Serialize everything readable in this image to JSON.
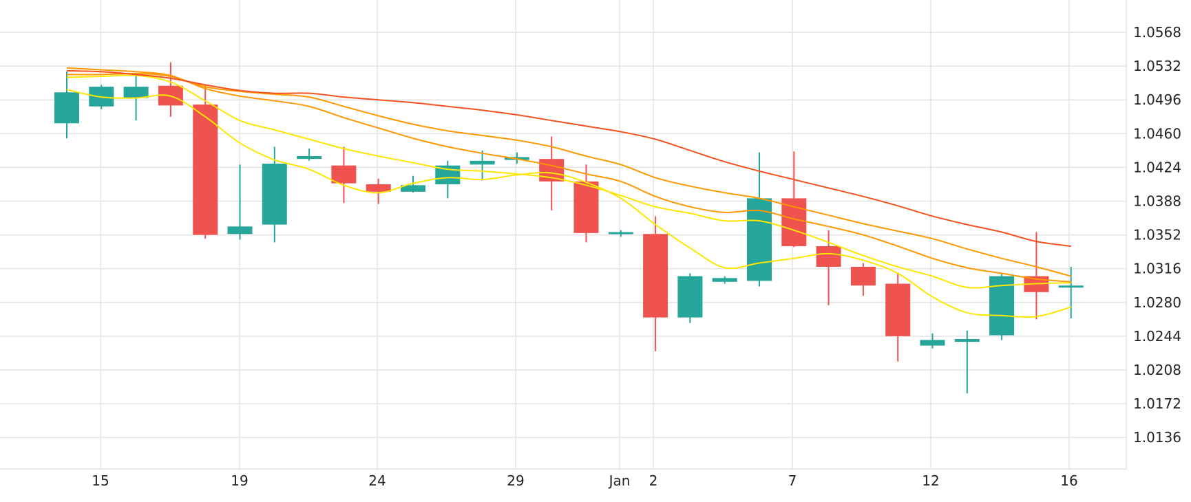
{
  "chart_data": {
    "type": "candlestick",
    "x_tick_labels": [
      "15",
      "19",
      "24",
      "29",
      "Jan",
      "2",
      "7",
      "12",
      "16"
    ],
    "y_ticks": [
      "1.0568",
      "1.0532",
      "1.0496",
      "1.0460",
      "1.0424",
      "1.0388",
      "1.0352",
      "1.0316",
      "1.0280",
      "1.0244",
      "1.0208",
      "1.0172",
      "1.0136"
    ],
    "ylim": [
      1.01,
      1.06
    ],
    "grid": true,
    "colors": {
      "up": "#26a69a",
      "down": "#ef5350",
      "ma_yellow": "#ffe600",
      "ma_orange": "#ff9800",
      "ma_red": "#f4511e"
    },
    "candles": [
      {
        "o": 1.0471,
        "h": 1.0526,
        "l": 1.0455,
        "c": 1.0504
      },
      {
        "o": 1.0489,
        "h": 1.0512,
        "l": 1.0486,
        "c": 1.051
      },
      {
        "o": 1.0498,
        "h": 1.0524,
        "l": 1.0474,
        "c": 1.051
      },
      {
        "o": 1.0511,
        "h": 1.0536,
        "l": 1.0478,
        "c": 1.049
      },
      {
        "o": 1.0491,
        "h": 1.0512,
        "l": 1.0348,
        "c": 1.0352
      },
      {
        "o": 1.0353,
        "h": 1.0427,
        "l": 1.0347,
        "c": 1.0361
      },
      {
        "o": 1.0363,
        "h": 1.0446,
        "l": 1.0344,
        "c": 1.0428
      },
      {
        "o": 1.0433,
        "h": 1.0444,
        "l": 1.0431,
        "c": 1.0436
      },
      {
        "o": 1.0426,
        "h": 1.0446,
        "l": 1.0386,
        "c": 1.0407
      },
      {
        "o": 1.0406,
        "h": 1.0412,
        "l": 1.0385,
        "c": 1.0398
      },
      {
        "o": 1.0398,
        "h": 1.0415,
        "l": 1.0397,
        "c": 1.0405
      },
      {
        "o": 1.0406,
        "h": 1.0431,
        "l": 1.0391,
        "c": 1.0426
      },
      {
        "o": 1.0427,
        "h": 1.0442,
        "l": 1.041,
        "c": 1.0431
      },
      {
        "o": 1.0432,
        "h": 1.044,
        "l": 1.0428,
        "c": 1.0435
      },
      {
        "o": 1.0433,
        "h": 1.0457,
        "l": 1.0378,
        "c": 1.0409
      },
      {
        "o": 1.0409,
        "h": 1.0427,
        "l": 1.0344,
        "c": 1.0354
      },
      {
        "o": 1.0354,
        "h": 1.0357,
        "l": 1.035,
        "c": 1.0355
      },
      {
        "o": 1.0353,
        "h": 1.0372,
        "l": 1.0228,
        "c": 1.0264
      },
      {
        "o": 1.0264,
        "h": 1.0311,
        "l": 1.0258,
        "c": 1.0308
      },
      {
        "o": 1.0302,
        "h": 1.0308,
        "l": 1.03,
        "c": 1.0306
      },
      {
        "o": 1.0303,
        "h": 1.044,
        "l": 1.0297,
        "c": 1.0391
      },
      {
        "o": 1.0391,
        "h": 1.0441,
        "l": 1.0339,
        "c": 1.034
      },
      {
        "o": 1.034,
        "h": 1.0357,
        "l": 1.0277,
        "c": 1.0318
      },
      {
        "o": 1.0318,
        "h": 1.0322,
        "l": 1.0287,
        "c": 1.0298
      },
      {
        "o": 1.03,
        "h": 1.0312,
        "l": 1.0217,
        "c": 1.0244
      },
      {
        "o": 1.0234,
        "h": 1.0247,
        "l": 1.0231,
        "c": 1.024
      },
      {
        "o": 1.0238,
        "h": 1.025,
        "l": 1.0183,
        "c": 1.0241
      },
      {
        "o": 1.0245,
        "h": 1.0311,
        "l": 1.024,
        "c": 1.0308
      },
      {
        "o": 1.0308,
        "h": 1.0355,
        "l": 1.0262,
        "c": 1.0291
      },
      {
        "o": 1.0298,
        "h": 1.0318,
        "l": 1.0263,
        "c": 1.0298
      }
    ],
    "ma_lines": [
      {
        "color": "#ffe600",
        "values": [
          1.0507,
          1.0499,
          1.0498,
          1.05,
          1.0478,
          1.045,
          1.0432,
          1.0422,
          1.0405,
          1.0397,
          1.0407,
          1.0413,
          1.0411,
          1.0416,
          1.0418,
          1.0408,
          1.0391,
          1.0363,
          1.0338,
          1.0317,
          1.0322,
          1.0327,
          1.0332,
          1.0325,
          1.0311,
          1.0286,
          1.0269,
          1.0266,
          1.0265,
          1.0275
        ]
      },
      {
        "color": "#ffe600",
        "values": [
          1.052,
          1.0521,
          1.0522,
          1.0515,
          1.0495,
          1.0474,
          1.0464,
          1.0454,
          1.0444,
          1.0436,
          1.0429,
          1.0422,
          1.042,
          1.0417,
          1.0413,
          1.0405,
          1.0394,
          1.0382,
          1.0375,
          1.0367,
          1.0367,
          1.0357,
          1.0344,
          1.033,
          1.0318,
          1.0308,
          1.0296,
          1.0298,
          1.03,
          1.0301
        ]
      },
      {
        "color": "#ff9800",
        "values": [
          1.053,
          1.0528,
          1.0526,
          1.0522,
          1.0508,
          1.05,
          1.0495,
          1.0489,
          1.0477,
          1.0466,
          1.0455,
          1.0446,
          1.0439,
          1.0433,
          1.0426,
          1.0417,
          1.0409,
          1.0393,
          1.0382,
          1.0376,
          1.0378,
          1.0369,
          1.0361,
          1.0352,
          1.034,
          1.0327,
          1.0317,
          1.0311,
          1.0305,
          1.0302
        ]
      },
      {
        "color": "#ff9800",
        "values": [
          1.0523,
          1.0523,
          1.0524,
          1.0521,
          1.051,
          1.0505,
          1.0502,
          1.0499,
          1.0489,
          1.0479,
          1.047,
          1.0463,
          1.0458,
          1.0453,
          1.0446,
          1.0436,
          1.0427,
          1.0413,
          1.0404,
          1.0397,
          1.0391,
          1.0382,
          1.0373,
          1.0364,
          1.0356,
          1.0348,
          1.0337,
          1.0327,
          1.0318,
          1.0308
        ]
      },
      {
        "color": "#f4511e",
        "values": [
          1.0527,
          1.0526,
          1.0523,
          1.0519,
          1.0512,
          1.0506,
          1.0503,
          1.0503,
          1.0499,
          1.0496,
          1.0493,
          1.0489,
          1.0485,
          1.048,
          1.0474,
          1.0468,
          1.0462,
          1.0454,
          1.0442,
          1.043,
          1.042,
          1.0411,
          1.0402,
          1.0393,
          1.0383,
          1.0372,
          1.0363,
          1.0355,
          1.0345,
          1.034
        ]
      }
    ]
  }
}
